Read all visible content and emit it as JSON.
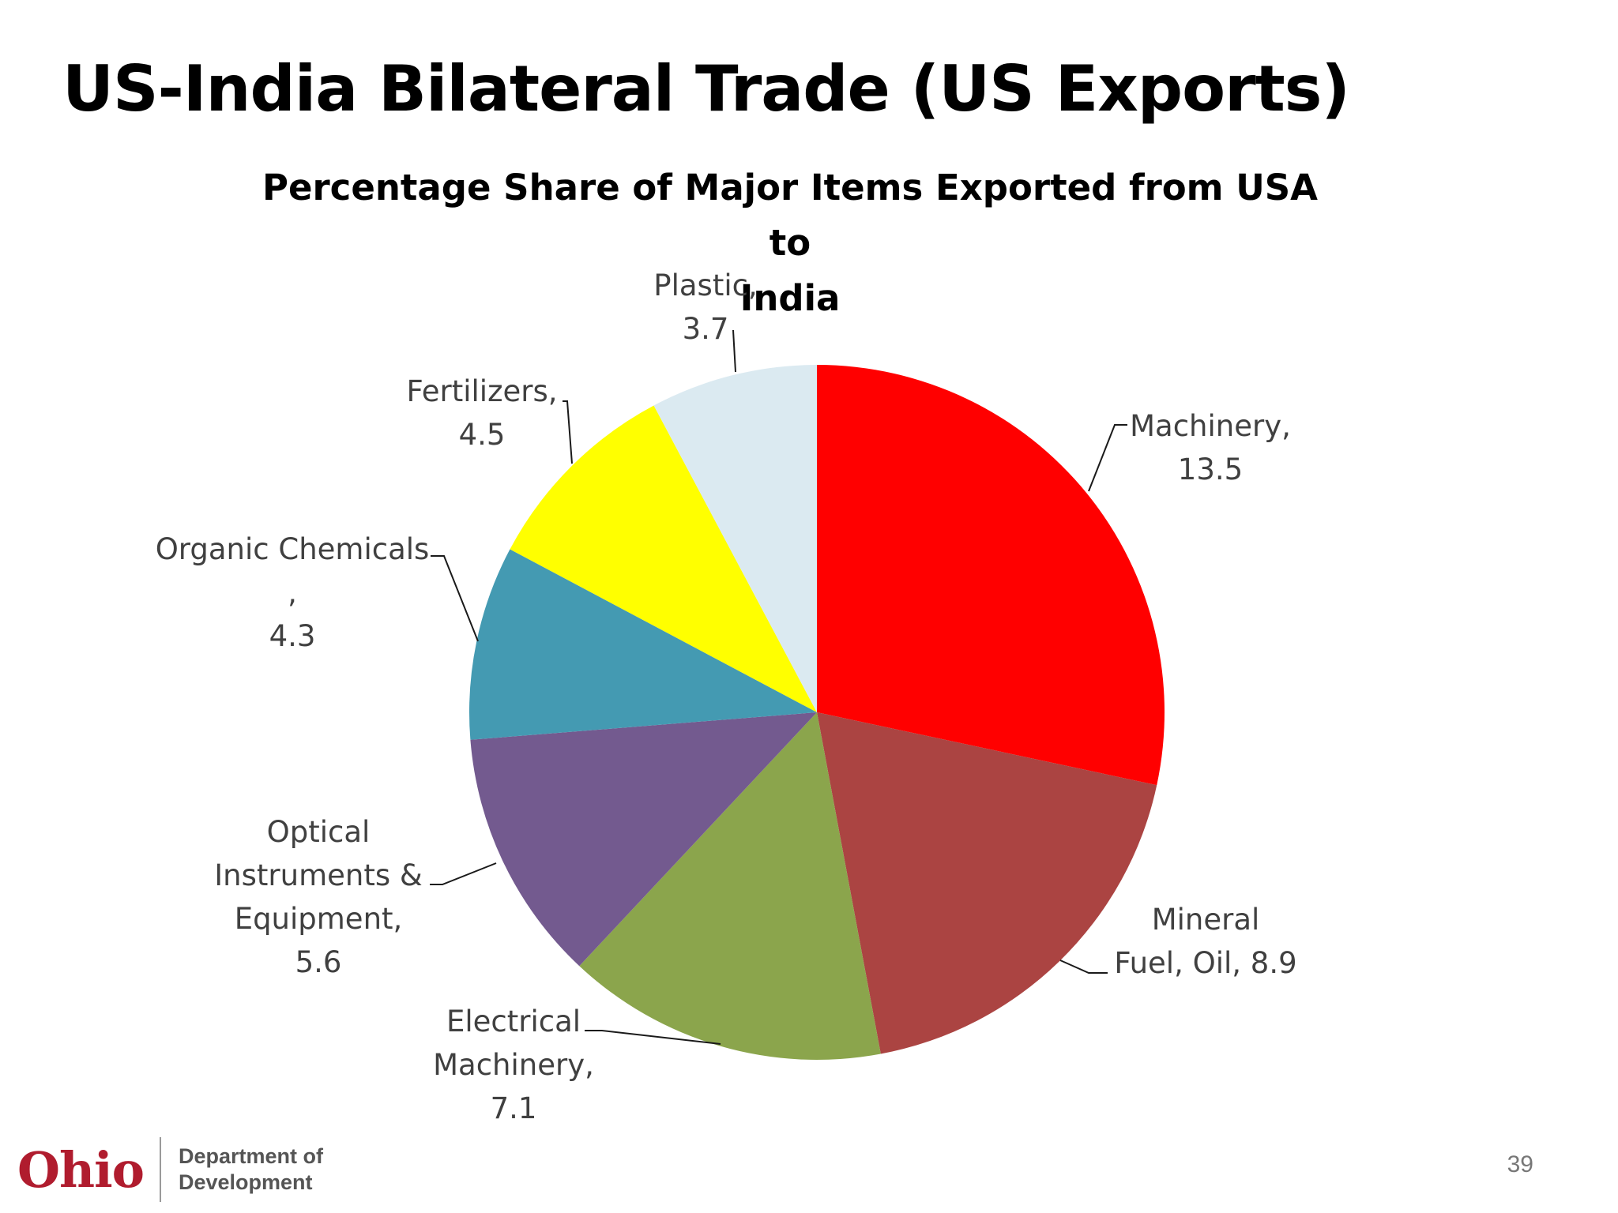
{
  "slide": {
    "title": "US-India Bilateral Trade (US Exports)",
    "page_number": "39"
  },
  "footer": {
    "logo_text": "Ohio",
    "org_line1": "Department of",
    "org_line2": "Development"
  },
  "chart_data": {
    "type": "pie",
    "title": "Percentage Share of Major Items Exported from USA to India",
    "title_lines": [
      "Percentage Share of Major Items Exported from USA to",
      "India"
    ],
    "start_angle": "12 o'clock",
    "direction": "clockwise",
    "legend": "none",
    "slices": [
      {
        "name": "Machinery",
        "value": 13.5,
        "color": "#ff0000",
        "label_lines": [
          "Machinery,",
          "13.5"
        ]
      },
      {
        "name": "Mineral Fuel, Oil",
        "value": 8.9,
        "color": "#ab4442",
        "label_lines": [
          "Mineral",
          "Fuel, Oil, 8.9"
        ]
      },
      {
        "name": "Electrical Machinery",
        "value": 7.1,
        "color": "#8ba54c",
        "label_lines": [
          "Electrical",
          "Machinery,",
          "7.1"
        ]
      },
      {
        "name": "Optical Instruments & Equipment",
        "value": 5.6,
        "color": "#735a8f",
        "label_lines": [
          "Optical",
          "Instruments &",
          "Equipment,",
          "5.6"
        ]
      },
      {
        "name": "Organic Chemicals",
        "value": 4.3,
        "color": "#449ab2",
        "label_lines": [
          "Organic Chemicals",
          ",",
          "4.3"
        ]
      },
      {
        "name": "Fertilizers",
        "value": 4.5,
        "color": "#ffff00",
        "label_lines": [
          "Fertilizers,",
          "4.5"
        ]
      },
      {
        "name": "Plastic",
        "value": 3.7,
        "color": "#dbeaf1",
        "label_lines": [
          "Plastic,",
          "3.7"
        ]
      }
    ]
  }
}
